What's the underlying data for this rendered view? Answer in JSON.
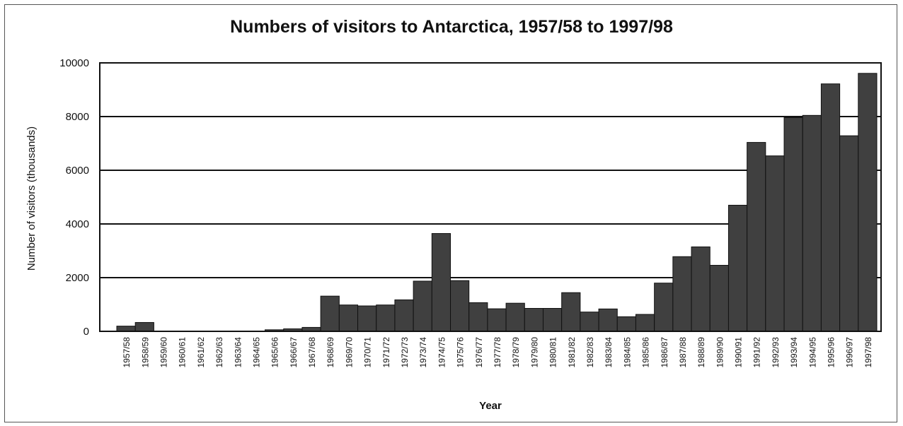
{
  "chart_data": {
    "type": "bar",
    "title": "Numbers of visitors to Antarctica, 1957/58 to 1997/98",
    "xlabel": "Year",
    "ylabel": "Number of visitors (thousands)",
    "ylim": [
      0,
      10000
    ],
    "yticks": [
      0,
      2000,
      4000,
      6000,
      8000,
      10000
    ],
    "grid": "horizontal",
    "legend": "none",
    "bar_color": "#404040",
    "categories": [
      "1957/58",
      "1958/59",
      "1959/60",
      "1960/61",
      "1961/62",
      "1962/63",
      "1963/64",
      "1964/65",
      "1965/66",
      "1966/67",
      "1967/68",
      "1968/69",
      "1969/70",
      "1970/71",
      "1971/72",
      "1972/73",
      "1973/74",
      "1974/75",
      "1975/76",
      "1976/77",
      "1977/78",
      "1978/79",
      "1979/80",
      "1980/81",
      "1981/82",
      "1982/83",
      "1983/84",
      "1984/85",
      "1985/86",
      "1986/87",
      "1987/88",
      "1988/89",
      "1989/90",
      "1990/91",
      "1991/92",
      "1992/93",
      "1993/94",
      "1994/95",
      "1995/96",
      "1996/97",
      "1997/98"
    ],
    "values": [
      194,
      330,
      0,
      0,
      0,
      0,
      0,
      0,
      58,
      94,
      147,
      1312,
      982,
      947,
      982,
      1173,
      1870,
      3644,
      1890,
      1068,
      840,
      1048,
      855,
      855,
      1441,
      719,
      834,
      544,
      631,
      1797,
      2782,
      3146,
      2460,
      4698,
      7037,
      6536,
      7960,
      8044,
      9218,
      7285,
      9610
    ]
  }
}
